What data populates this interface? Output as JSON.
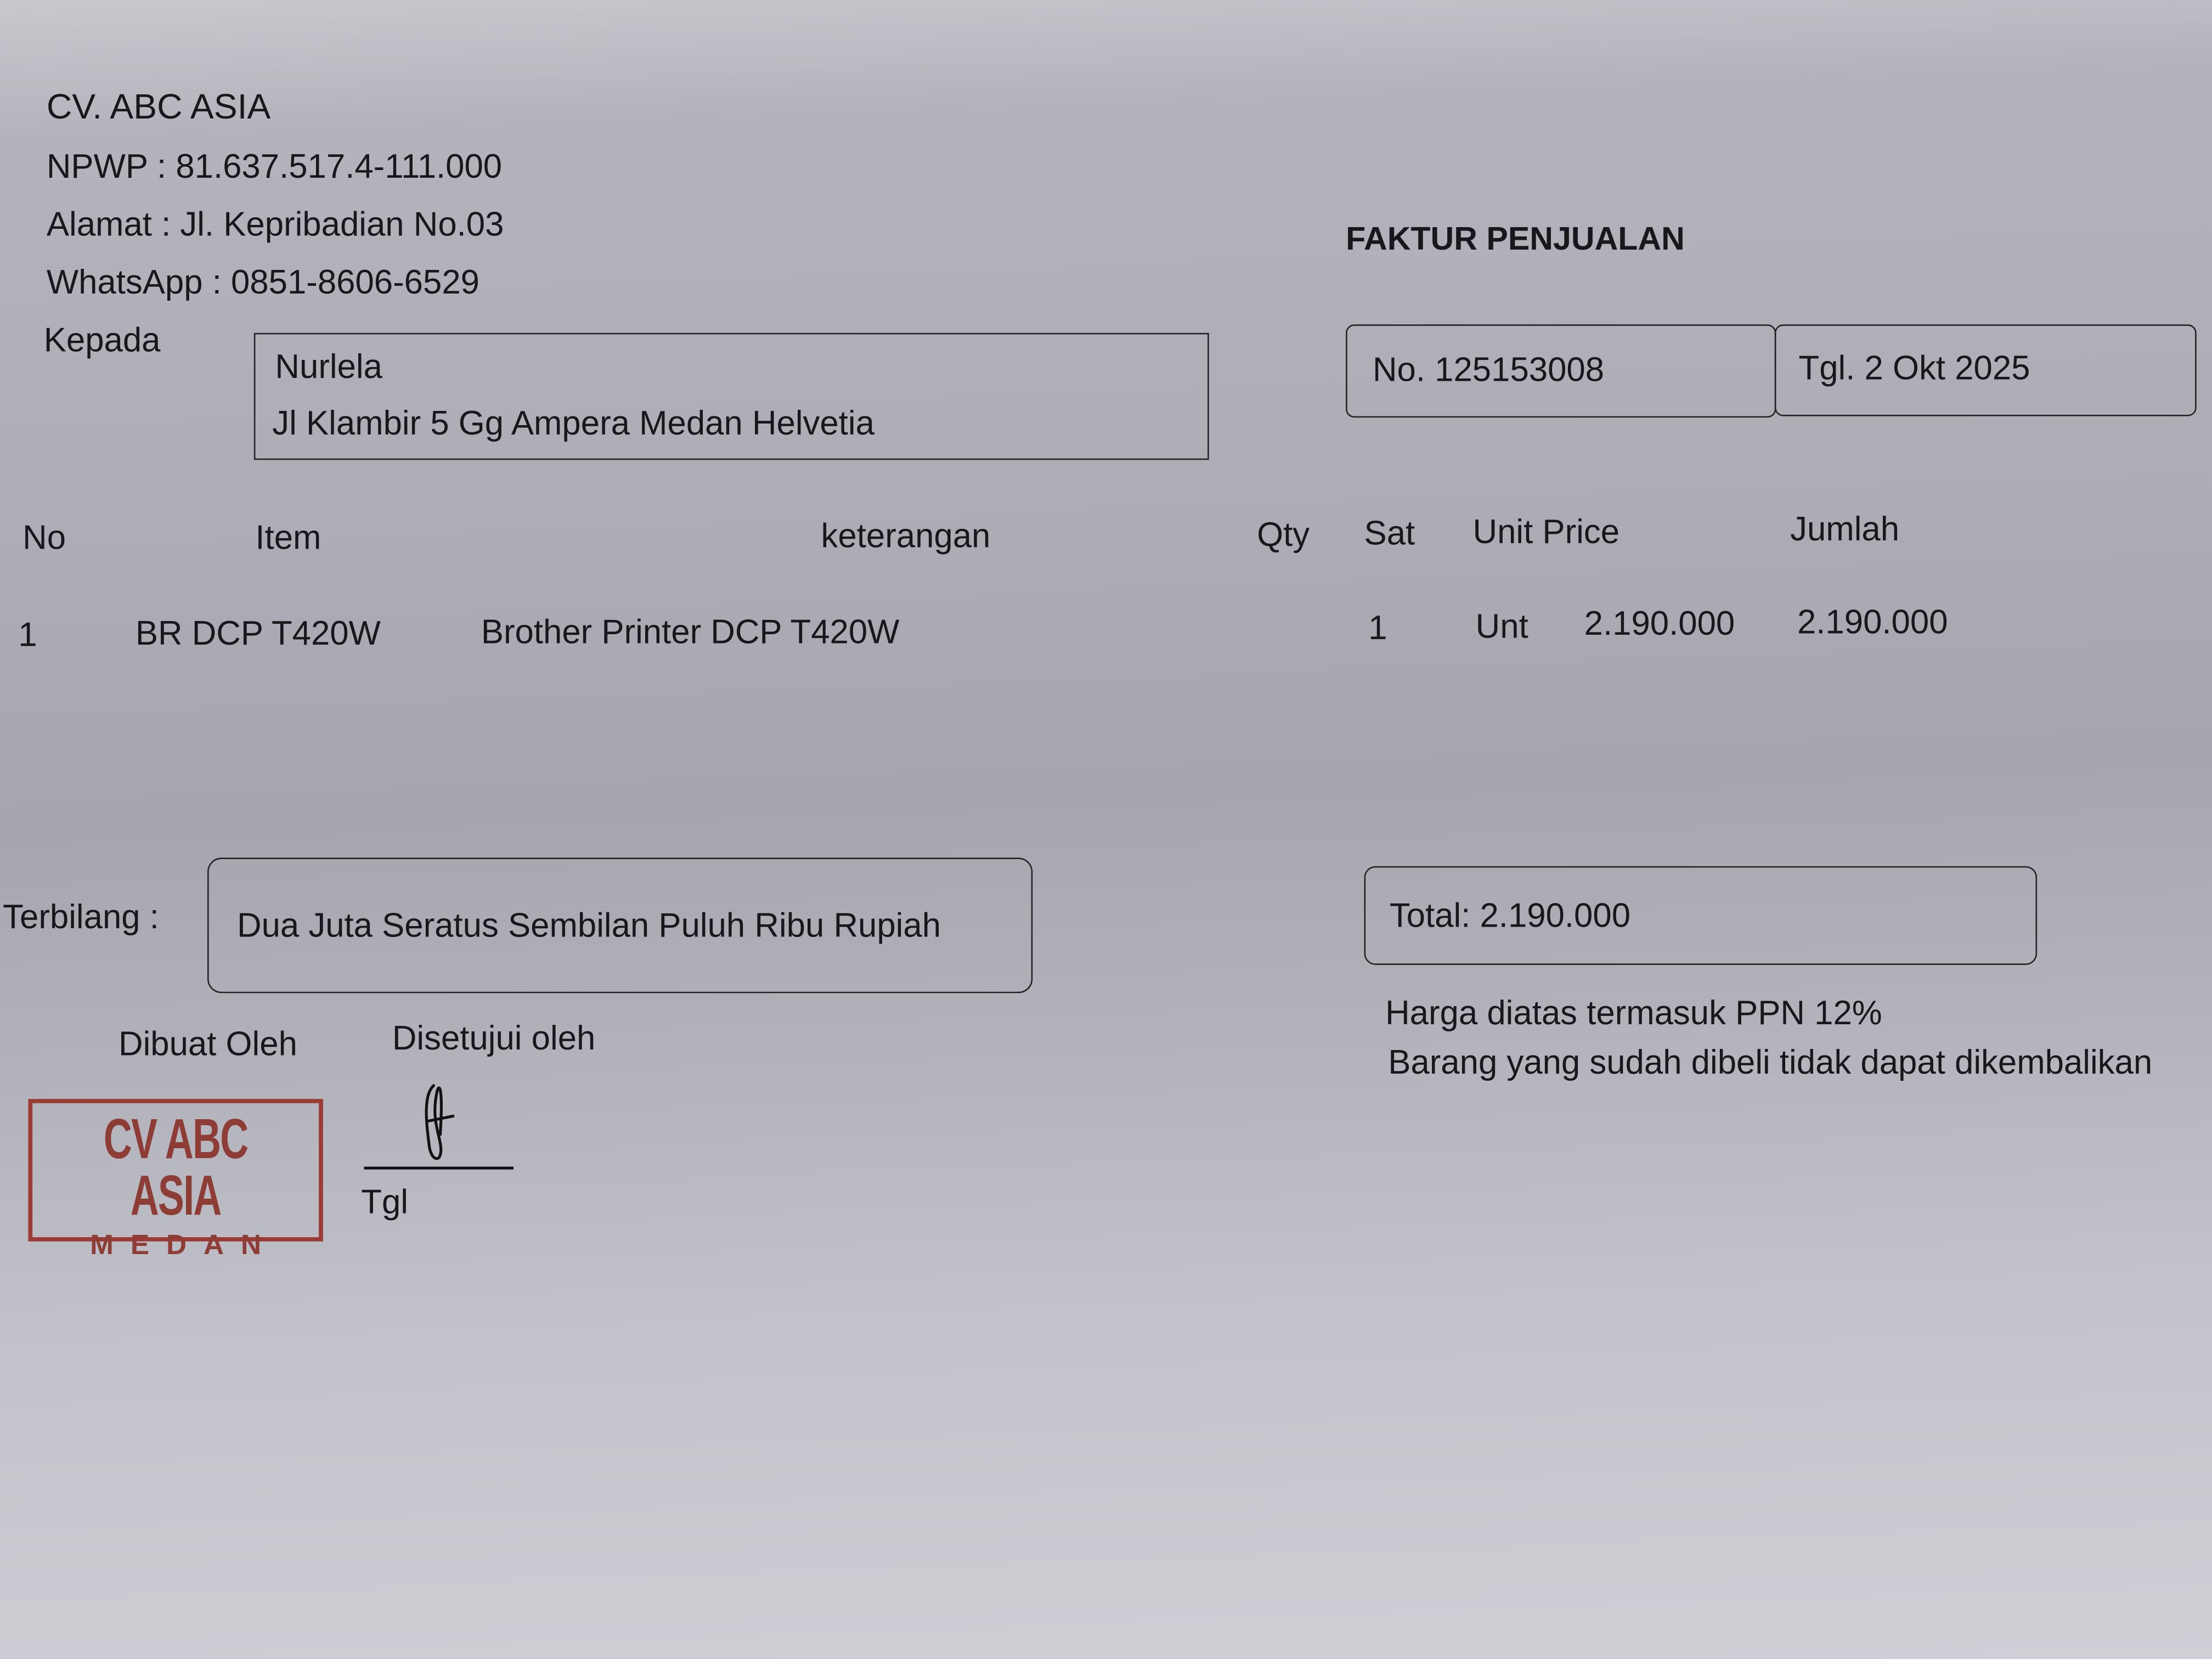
{
  "seller": {
    "name": "CV. ABC ASIA",
    "npwp": "NPWP : 81.637.517.4-111.000",
    "address": "Alamat : Jl. Kepribadian No.03",
    "whatsapp": "WhatsApp : 0851-8606-6529"
  },
  "recipient": {
    "label": "Kepada",
    "name": "Nurlela",
    "address": "Jl Klambir 5 Gg Ampera Medan Helvetia"
  },
  "invoice": {
    "title": "FAKTUR PENJUALAN",
    "number": "No. 125153008",
    "date": "Tgl. 2 Okt 2025"
  },
  "table": {
    "headers": [
      "No",
      "Item",
      "keterangan",
      "Qty",
      "Sat",
      "Unit Price",
      "Jumlah"
    ],
    "rows": [
      [
        "1",
        "BR DCP T420W",
        "Brother Printer DCP T420W",
        "1",
        "Unt",
        "2.190.000",
        "2.190.000"
      ]
    ]
  },
  "terbilang": {
    "label": "Terbilang :",
    "text": "Dua Juta Seratus Sembilan Puluh Ribu Rupiah"
  },
  "total": "Total: 2.190.000",
  "notes": [
    "Harga diatas termasuk PPN 12%",
    "Barang yang sudah dibeli tidak dapat dikembalikan"
  ],
  "signatures": {
    "made_by": "Dibuat Oleh",
    "approved_by": "Disetujui oleh",
    "date_label": "Tgl"
  },
  "stamp": {
    "line1": "CV ABC ASIA",
    "line2": "MEDAN",
    "color": "#9c3a36"
  }
}
